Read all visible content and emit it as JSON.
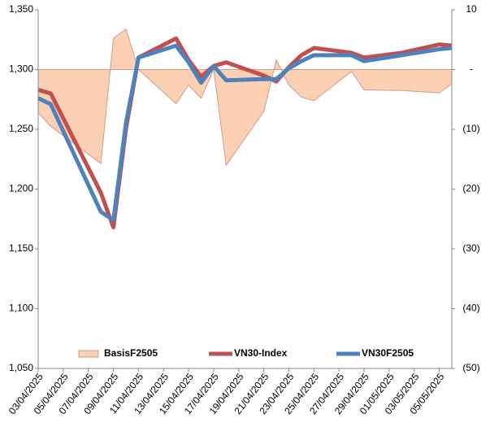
{
  "chart_data": {
    "type": "line",
    "x": [
      "03/04/2025",
      "04/04/2025",
      "08/04/2025",
      "09/04/2025",
      "10/04/2025",
      "11/04/2025",
      "14/04/2025",
      "15/04/2025",
      "16/04/2025",
      "17/04/2025",
      "18/04/2025",
      "21/04/2025",
      "22/04/2025",
      "23/04/2025",
      "24/04/2025",
      "25/04/2025",
      "28/04/2025",
      "29/04/2025",
      "02/05/2025",
      "05/05/2025",
      "06/05/2025"
    ],
    "xlim": [
      "03/04/2025",
      "06/05/2025"
    ],
    "xticks": [
      "03/04/2025",
      "05/04/2025",
      "07/04/2025",
      "09/04/2025",
      "11/04/2025",
      "13/04/2025",
      "15/04/2025",
      "17/04/2025",
      "19/04/2025",
      "21/04/2025",
      "23/04/2025",
      "25/04/2025",
      "27/04/2025",
      "29/04/2025",
      "01/05/2025",
      "03/05/2025",
      "05/05/2025"
    ],
    "ylim": [
      1050,
      1350
    ],
    "yticks": [
      {
        "value": 1050,
        "label": "1,050"
      },
      {
        "value": 1100,
        "label": "1,100"
      },
      {
        "value": 1150,
        "label": "1,150"
      },
      {
        "value": 1200,
        "label": "1,200"
      },
      {
        "value": 1250,
        "label": "1,250"
      },
      {
        "value": 1300,
        "label": "1,300"
      },
      {
        "value": 1350,
        "label": "1,350"
      }
    ],
    "y2lim": [
      -50,
      10
    ],
    "y2ticks": [
      {
        "value": -50,
        "label": "(50)"
      },
      {
        "value": -40,
        "label": "(40)"
      },
      {
        "value": -30,
        "label": "(30)"
      },
      {
        "value": -20,
        "label": "(20)"
      },
      {
        "value": -10,
        "label": "(10)"
      },
      {
        "value": 0,
        "label": "-"
      },
      10
    ],
    "legend": "bottom",
    "series": [
      {
        "name": "BasisF2505",
        "type": "area",
        "axis": "y2",
        "color": "#fcd0b2",
        "values": [
          -7.2,
          -9.5,
          -15.7,
          5.2,
          6.8,
          0,
          -5.7,
          -2.6,
          -4.8,
          0,
          -16,
          -7,
          1.6,
          -2.6,
          -4.6,
          -5.2,
          -0.3,
          -3.4,
          -3.5,
          -3.9,
          -2.4
        ]
      },
      {
        "name": "VN30-Index",
        "type": "line",
        "color": "#c0504d",
        "values": [
          1283,
          1280,
          1197,
          1168,
          1250,
          1310,
          1326,
          1308,
          1294,
          1303,
          1306,
          1295,
          1290,
          1302,
          1312,
          1318,
          1314,
          1310,
          1314,
          1321,
          1320
        ]
      },
      {
        "name": "VN30F2505",
        "type": "line",
        "color": "#4f81bd",
        "values": [
          1276,
          1271,
          1181,
          1174,
          1255,
          1310,
          1320,
          1306,
          1289,
          1303,
          1291,
          1292,
          1292,
          1301,
          1307,
          1312,
          1312,
          1307,
          1312,
          1317,
          1318
        ]
      }
    ]
  }
}
